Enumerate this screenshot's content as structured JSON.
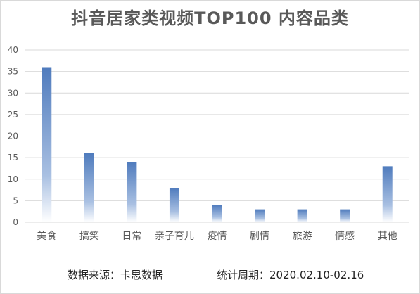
{
  "chart_data": {
    "type": "bar",
    "title": "抖音居家类视频TOP100  内容品类",
    "categories": [
      "美食",
      "搞笑",
      "日常",
      "亲子育儿",
      "疫情",
      "剧情",
      "旅游",
      "情感",
      "其他"
    ],
    "values": [
      36,
      16,
      14,
      8,
      4,
      3,
      3,
      3,
      13
    ],
    "y_ticks": [
      0,
      5,
      10,
      15,
      20,
      25,
      30,
      35,
      40
    ],
    "ylim": [
      0,
      40
    ],
    "grid": true,
    "legend": "none",
    "colors": {
      "bar_top": "#4f7bbd",
      "bar_bottom": "#ffffff",
      "grid": "#d9d9d9",
      "text": "#595959"
    }
  },
  "footer": {
    "source": "数据来源：卡思数据",
    "period": "统计周期：2020.02.10-02.16"
  }
}
